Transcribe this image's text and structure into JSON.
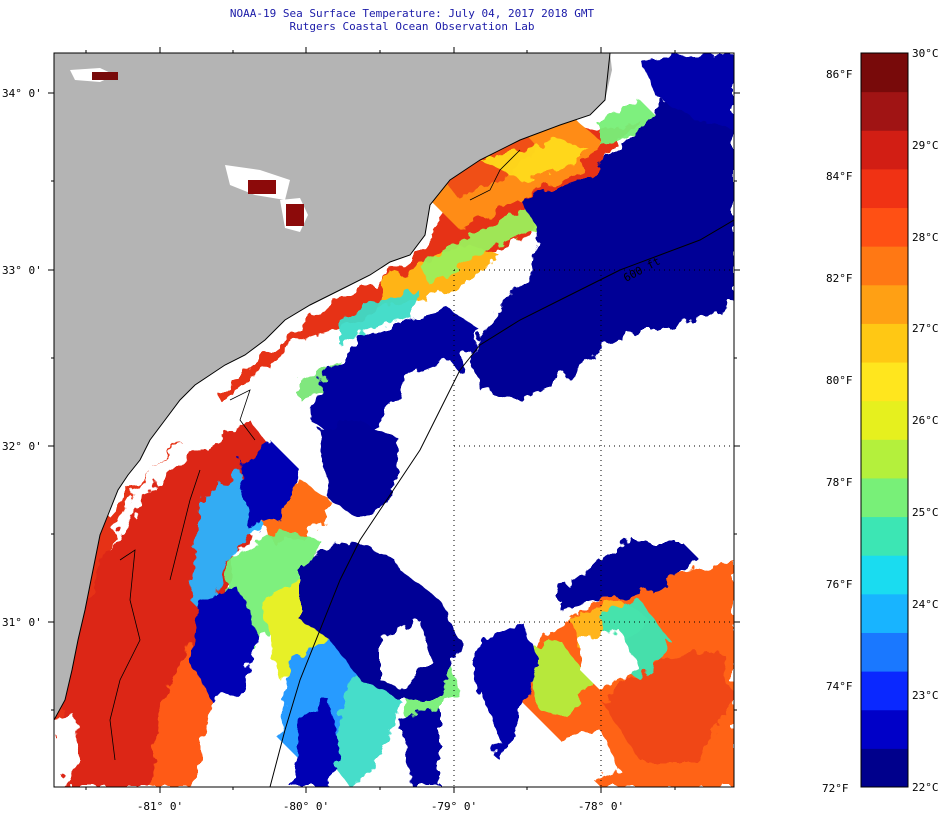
{
  "title": {
    "line1": "NOAA-19 Sea Surface Temperature:  July 04, 2017 2018 GMT",
    "line2": "Rutgers Coastal Ocean Observation Lab"
  },
  "map": {
    "lat_labels": [
      "34° 0'",
      "33° 0'",
      "32° 0'",
      "31° 0'"
    ],
    "lon_labels": [
      "-81° 0'",
      "-80° 0'",
      "-79° 0'",
      "-78° 0'"
    ],
    "isobath_label": "600 ft",
    "colors": {
      "land": "#b4b4b4",
      "cloud": "#ffffff",
      "coast": "#000000"
    }
  },
  "colorbar": {
    "fahrenheit_labels": [
      "86°F",
      "84°F",
      "82°F",
      "80°F",
      "78°F",
      "76°F",
      "74°F",
      "72°F"
    ],
    "celsius_labels": [
      "30°C",
      "29°C",
      "28°C",
      "27°C",
      "26°C",
      "25°C",
      "24°C",
      "23°C",
      "22°C"
    ],
    "colors": [
      "#00008c",
      "#0000c8",
      "#0a28ff",
      "#1a78ff",
      "#18b4ff",
      "#1adcf0",
      "#3ce6b4",
      "#78f078",
      "#b4f03c",
      "#e6f01e",
      "#ffe61e",
      "#ffc814",
      "#ffa014",
      "#ff7814",
      "#ff5014",
      "#f03214",
      "#d21e14",
      "#a01414",
      "#780a0a"
    ]
  }
}
